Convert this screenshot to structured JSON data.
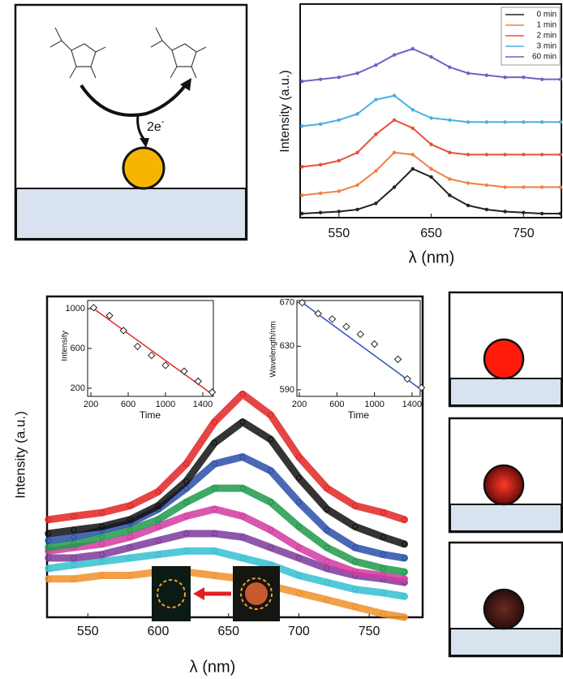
{
  "diagram": {
    "electrons": "2e",
    "electron_charge": "-"
  },
  "chart_data": [
    {
      "type": "line",
      "xlabel": "λ (nm)",
      "ylabel": "Intensity (a.u.)",
      "x": [
        510,
        530,
        550,
        570,
        590,
        610,
        630,
        650,
        670,
        690,
        710,
        730,
        750,
        770,
        790
      ],
      "xlim": [
        508,
        791
      ],
      "xticks": [
        550,
        650,
        750
      ],
      "ylim": [
        -0.1,
        10.4
      ],
      "legend": "upper right",
      "series": [
        {
          "name": "0 min",
          "color": "#222222",
          "values": [
            0.1,
            0.15,
            0.2,
            0.3,
            0.6,
            1.4,
            2.3,
            1.9,
            1.0,
            0.5,
            0.3,
            0.2,
            0.15,
            0.1,
            0.1
          ]
        },
        {
          "name": "1 min",
          "color": "#f08040",
          "values": [
            1.0,
            1.1,
            1.2,
            1.5,
            2.2,
            3.1,
            3.0,
            2.3,
            1.8,
            1.6,
            1.5,
            1.4,
            1.4,
            1.4,
            1.4
          ]
        },
        {
          "name": "2 min",
          "color": "#e8503a",
          "values": [
            2.4,
            2.5,
            2.7,
            3.1,
            4.0,
            4.7,
            4.3,
            3.5,
            3.1,
            3.0,
            3.0,
            3.0,
            3.0,
            3.0,
            3.0
          ]
        },
        {
          "name": "3 min",
          "color": "#4ab0e0",
          "values": [
            4.4,
            4.5,
            4.7,
            5.0,
            5.7,
            5.9,
            5.2,
            4.8,
            4.7,
            4.6,
            4.6,
            4.6,
            4.6,
            4.6,
            4.6
          ]
        },
        {
          "name": "60 min",
          "color": "#7a5cc0",
          "values": [
            6.6,
            6.7,
            6.8,
            7.0,
            7.4,
            7.9,
            8.2,
            7.8,
            7.3,
            7.0,
            6.9,
            6.8,
            6.8,
            6.7,
            6.7
          ]
        }
      ]
    },
    {
      "type": "line",
      "xlabel": "λ (nm)",
      "ylabel": "Intensity (a.u.)",
      "x": [
        522,
        540,
        560,
        580,
        600,
        620,
        640,
        660,
        680,
        700,
        720,
        740,
        760,
        775
      ],
      "xlim": [
        521,
        788
      ],
      "xticks": [
        550,
        600,
        650,
        700,
        750
      ],
      "ylim": [
        0.8,
        10
      ],
      "series": [
        {
          "color": "#e02424",
          "values": [
            3.6,
            3.7,
            3.8,
            4.0,
            4.4,
            5.2,
            6.4,
            7.2,
            6.6,
            5.4,
            4.5,
            4.0,
            3.8,
            3.6
          ]
        },
        {
          "color": "#111111",
          "values": [
            3.2,
            3.3,
            3.4,
            3.6,
            4.0,
            4.7,
            5.8,
            6.4,
            5.9,
            4.8,
            3.9,
            3.4,
            3.1,
            2.9
          ]
        },
        {
          "color": "#2a4fa8",
          "values": [
            3.0,
            3.1,
            3.3,
            3.5,
            3.9,
            4.5,
            5.2,
            5.4,
            5.0,
            4.1,
            3.3,
            2.8,
            2.6,
            2.5
          ]
        },
        {
          "color": "#1f9a4a",
          "values": [
            2.8,
            2.9,
            3.1,
            3.3,
            3.6,
            4.1,
            4.5,
            4.5,
            4.1,
            3.4,
            2.8,
            2.4,
            2.2,
            2.1
          ]
        },
        {
          "color": "#d23aa0",
          "values": [
            2.7,
            2.8,
            2.9,
            3.1,
            3.4,
            3.7,
            3.9,
            3.7,
            3.3,
            2.8,
            2.4,
            2.1,
            2.0,
            1.9
          ]
        },
        {
          "color": "#7b3a9a",
          "values": [
            2.5,
            2.5,
            2.6,
            2.8,
            3.0,
            3.2,
            3.2,
            3.1,
            2.8,
            2.5,
            2.2,
            2.0,
            1.9,
            1.8
          ]
        },
        {
          "color": "#35c0d0",
          "values": [
            2.2,
            2.3,
            2.4,
            2.5,
            2.6,
            2.7,
            2.7,
            2.5,
            2.3,
            2.0,
            1.8,
            1.6,
            1.5,
            1.4
          ]
        },
        {
          "color": "#f0902a",
          "values": [
            1.9,
            1.9,
            2.0,
            2.0,
            2.1,
            2.1,
            2.0,
            1.9,
            1.7,
            1.5,
            1.3,
            1.1,
            0.9,
            0.8
          ]
        }
      ]
    },
    {
      "type": "scatter",
      "xlabel": "Time",
      "ylabel": "Intensity",
      "x": [
        230,
        400,
        550,
        700,
        850,
        1000,
        1200,
        1350,
        1500
      ],
      "values": [
        1010,
        930,
        780,
        620,
        530,
        430,
        370,
        270,
        160
      ],
      "color": "#222222",
      "fit": {
        "x": [
          200,
          1500
        ],
        "values": [
          1020,
          140
        ],
        "color": "#e02020"
      },
      "xlim": [
        165,
        1513
      ],
      "xticks": [
        200,
        600,
        1000,
        1400
      ],
      "ylim": [
        118,
        1082
      ],
      "yticks": [
        200,
        600,
        1000
      ]
    },
    {
      "type": "scatter",
      "xlabel": "Time",
      "ylabel": "Wavelength/nm",
      "x": [
        230,
        400,
        550,
        700,
        850,
        1000,
        1250,
        1350,
        1500
      ],
      "values": [
        670,
        660,
        655,
        648,
        641,
        632,
        618,
        600,
        592
      ],
      "color": "#222222",
      "fit": {
        "x": [
          200,
          1500
        ],
        "values": [
          672,
          590
        ],
        "color": "#3050c0"
      },
      "xlim": [
        174,
        1487
      ],
      "xticks": [
        200,
        600,
        1000,
        1400
      ],
      "ylim": [
        584,
        672
      ],
      "yticks": [
        590,
        630,
        670
      ]
    }
  ]
}
